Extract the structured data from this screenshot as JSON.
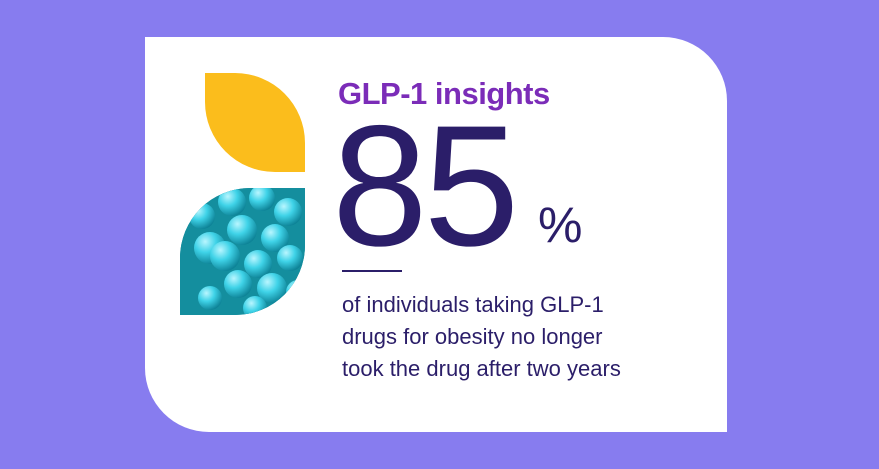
{
  "title": "GLP-1 insights",
  "stat": {
    "value": "85",
    "unit": "%"
  },
  "description": [
    "of individuals taking GLP-1",
    "drugs for obesity no longer",
    "took the drug after two years"
  ]
}
